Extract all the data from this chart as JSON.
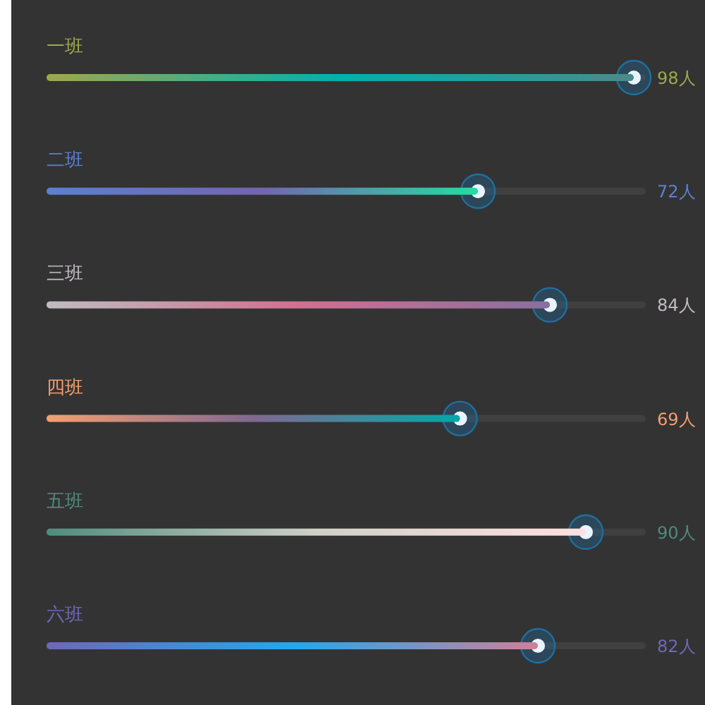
{
  "chart_data": {
    "type": "bar",
    "orientation": "horizontal",
    "categories": [
      "一班",
      "二班",
      "三班",
      "四班",
      "五班",
      "六班"
    ],
    "values": [
      98,
      72,
      84,
      69,
      90,
      82
    ],
    "colors": [
      "#9fa84b",
      "#5b7fd4",
      "#c0bcc0",
      "#f5a070",
      "#4f8c7c",
      "#6e67b8"
    ],
    "value_labels": [
      "98人",
      "72人",
      "84人",
      "69人",
      "90人",
      "82人"
    ]
  }
}
